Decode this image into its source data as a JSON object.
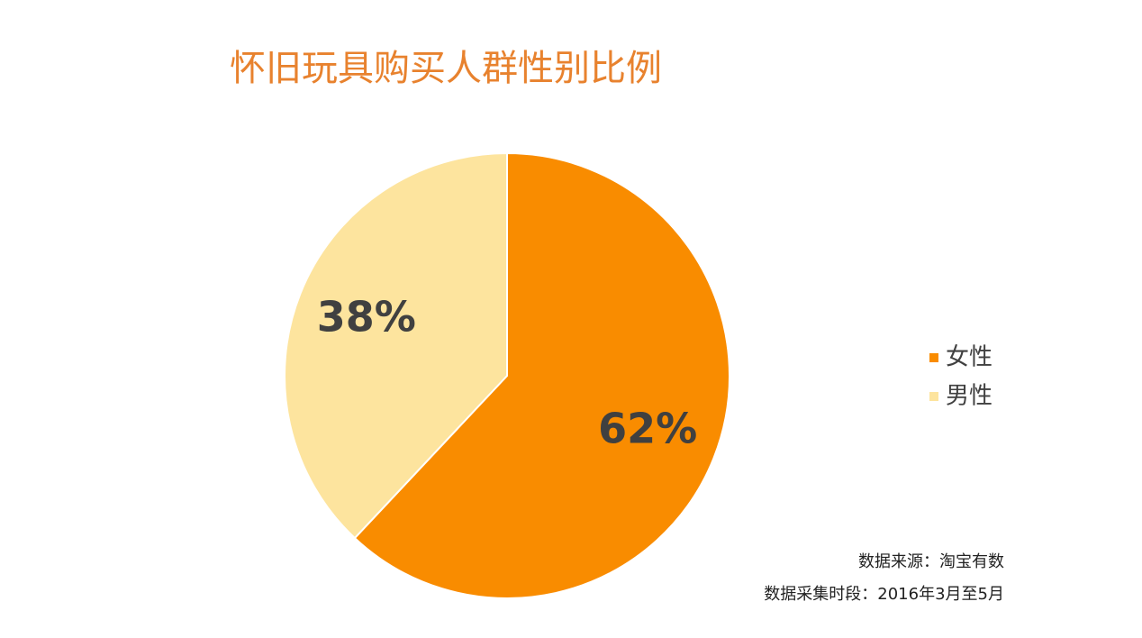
{
  "chart_data": {
    "type": "pie",
    "title": "怀旧玩具购买人群性别比例",
    "categories": [
      "女性",
      "男性"
    ],
    "values": [
      62,
      38
    ],
    "value_labels": [
      "62%",
      "38%"
    ],
    "colors": [
      "#f98c00",
      "#fde49e"
    ],
    "legend": "right",
    "notes": [
      "数据来源：淘宝有数",
      "数据采集时段：2016年3月至5月"
    ]
  }
}
